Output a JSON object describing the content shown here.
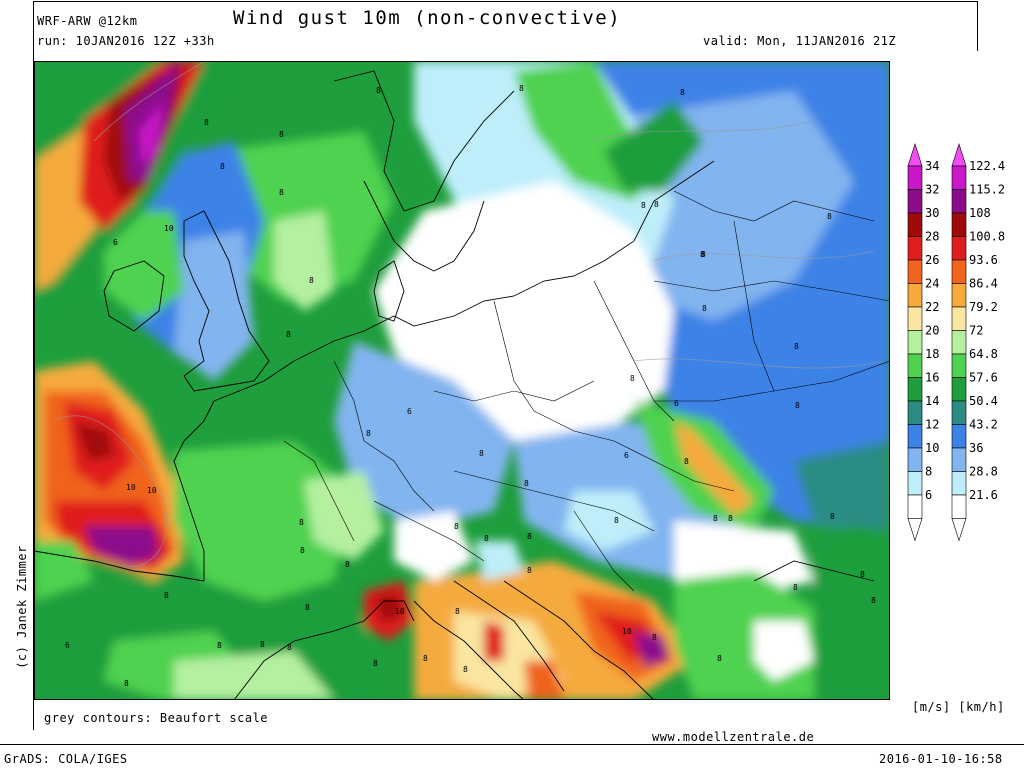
{
  "header": {
    "model": "WRF-ARW @12km",
    "run": "run: 10JAN2016 12Z +33h",
    "title": "Wind gust 10m (non-convective)",
    "valid": "valid: Mon, 11JAN2016 21Z"
  },
  "copyright": "(c) Janek Zimmer",
  "footer": {
    "contours_note": "grey contours: Beaufort scale",
    "website": "www.modellzentrale.de",
    "grads": "GrADS: COLA/IGES",
    "timestamp": "2016-01-10-16:58"
  },
  "colorbar": {
    "units": "[m/s] [km/h]",
    "levels": [
      {
        "ms": "34",
        "kmh": "122.4",
        "color": "#f04cf0"
      },
      {
        "ms": "32",
        "kmh": "115.2",
        "color": "#c818c8"
      },
      {
        "ms": "30",
        "kmh": "108",
        "color": "#8c0d8c"
      },
      {
        "ms": "28",
        "kmh": "100.8",
        "color": "#a00a0a"
      },
      {
        "ms": "26",
        "kmh": "93.6",
        "color": "#e01e1e"
      },
      {
        "ms": "24",
        "kmh": "86.4",
        "color": "#f0641e"
      },
      {
        "ms": "22",
        "kmh": "79.2",
        "color": "#f5aa3c"
      },
      {
        "ms": "20",
        "kmh": "72",
        "color": "#fae6a0"
      },
      {
        "ms": "18",
        "kmh": "64.8",
        "color": "#b4f0a0"
      },
      {
        "ms": "16",
        "kmh": "57.6",
        "color": "#50d250"
      },
      {
        "ms": "14",
        "kmh": "50.4",
        "color": "#1e9e3c"
      },
      {
        "ms": "12",
        "kmh": "43.2",
        "color": "#2a8c82"
      },
      {
        "ms": "10",
        "kmh": "36",
        "color": "#3c82e6"
      },
      {
        "ms": "8",
        "kmh": "28.8",
        "color": "#82b4f0"
      },
      {
        "ms": "6",
        "kmh": "21.6",
        "color": "#beeefa"
      }
    ],
    "low_color": "#ffffff"
  },
  "map_labels": [
    "6",
    "8",
    "10"
  ]
}
